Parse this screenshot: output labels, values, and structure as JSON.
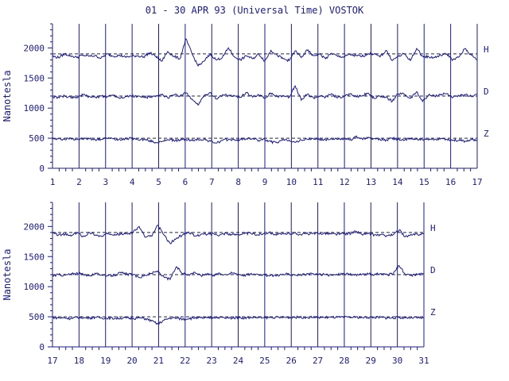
{
  "title": "01 - 30 APR 93 (Universal Time) VOSTOK",
  "ylabel": "Nanotesla",
  "colors": {
    "ink": "#1a1a8c",
    "background": "#ffffff"
  },
  "chart_data": [
    {
      "type": "line",
      "xlim": [
        1,
        17
      ],
      "ylim": [
        0,
        2400
      ],
      "xticks": [
        1,
        2,
        3,
        4,
        5,
        6,
        7,
        8,
        9,
        10,
        11,
        12,
        13,
        14,
        15,
        16,
        17
      ],
      "yticks": [
        0,
        500,
        1000,
        1500,
        2000
      ],
      "grid": "vertical at each day",
      "series": [
        {
          "name": "H",
          "baseline": 1900,
          "values": [
            1860,
            1840,
            1900,
            1870,
            1840,
            1880,
            1860,
            1870,
            1830,
            1900,
            1860,
            1880,
            1850,
            1860,
            1870,
            1850,
            1920,
            1860,
            1780,
            1940,
            1860,
            1820,
            2150,
            1900,
            1700,
            1780,
            1900,
            1800,
            1840,
            2000,
            1850,
            1800,
            1870,
            1820,
            1900,
            1780,
            1960,
            1880,
            1820,
            1790,
            1950,
            1840,
            1960,
            1870,
            1900,
            1820,
            1910,
            1860,
            1850,
            1890,
            1870,
            1860,
            1900,
            1900,
            1850,
            1960,
            1790,
            1860,
            1900,
            1790,
            1990,
            1860,
            1850,
            1840,
            1880,
            1900,
            1800,
            1850,
            1990,
            1880,
            1800
          ]
        },
        {
          "name": "D",
          "baseline": 1200,
          "values": [
            1180,
            1180,
            1200,
            1180,
            1180,
            1220,
            1190,
            1180,
            1200,
            1190,
            1220,
            1170,
            1190,
            1200,
            1190,
            1180,
            1180,
            1190,
            1220,
            1170,
            1220,
            1200,
            1250,
            1150,
            1050,
            1200,
            1260,
            1150,
            1220,
            1210,
            1200,
            1180,
            1260,
            1180,
            1220,
            1170,
            1250,
            1190,
            1210,
            1180,
            1370,
            1130,
            1230,
            1170,
            1200,
            1180,
            1240,
            1170,
            1200,
            1230,
            1190,
            1200,
            1250,
            1160,
            1200,
            1180,
            1110,
            1240,
            1230,
            1160,
            1270,
            1110,
            1220,
            1200,
            1230,
            1240,
            1180,
            1200,
            1220,
            1200,
            1230
          ]
        },
        {
          "name": "Z",
          "baseline": 500,
          "values": [
            480,
            490,
            480,
            500,
            480,
            490,
            490,
            480,
            480,
            500,
            490,
            480,
            490,
            500,
            480,
            480,
            460,
            430,
            440,
            480,
            460,
            470,
            480,
            460,
            480,
            480,
            450,
            420,
            460,
            480,
            470,
            480,
            490,
            490,
            460,
            480,
            440,
            420,
            470,
            470,
            430,
            470,
            480,
            490,
            480,
            470,
            490,
            480,
            490,
            470,
            520,
            490,
            500,
            490,
            480,
            470,
            500,
            480,
            470,
            490,
            490,
            470,
            470,
            480,
            500,
            480,
            470,
            460,
            450,
            480,
            470
          ]
        }
      ]
    },
    {
      "type": "line",
      "xlim": [
        17,
        31
      ],
      "ylim": [
        0,
        2400
      ],
      "xticks": [
        17,
        18,
        19,
        20,
        21,
        22,
        23,
        24,
        25,
        26,
        27,
        28,
        29,
        30,
        31
      ],
      "yticks": [
        0,
        500,
        1000,
        1500,
        2000
      ],
      "grid": "vertical at each day",
      "series": [
        {
          "name": "H",
          "baseline": 1900,
          "values": [
            1890,
            1860,
            1870,
            1840,
            1900,
            1830,
            1900,
            1860,
            1830,
            1890,
            1870,
            1870,
            1880,
            1900,
            2000,
            1820,
            1840,
            2020,
            1860,
            1720,
            1800,
            1860,
            1910,
            1840,
            1870,
            1870,
            1880,
            1860,
            1890,
            1860,
            1870,
            1880,
            1890,
            1860,
            1880,
            1900,
            1870,
            1870,
            1880,
            1890,
            1870,
            1880,
            1880,
            1880,
            1890,
            1880,
            1870,
            1880,
            1880,
            1920,
            1870,
            1880,
            1860,
            1860,
            1850,
            1860,
            1940,
            1830,
            1860,
            1870,
            1880
          ]
        },
        {
          "name": "D",
          "baseline": 1200,
          "values": [
            1180,
            1200,
            1190,
            1210,
            1230,
            1200,
            1190,
            1210,
            1200,
            1180,
            1190,
            1230,
            1210,
            1200,
            1150,
            1190,
            1220,
            1260,
            1160,
            1120,
            1330,
            1220,
            1200,
            1240,
            1180,
            1220,
            1190,
            1220,
            1200,
            1230,
            1210,
            1190,
            1210,
            1210,
            1200,
            1180,
            1190,
            1200,
            1210,
            1200,
            1190,
            1200,
            1210,
            1200,
            1200,
            1190,
            1200,
            1220,
            1200,
            1200,
            1200,
            1210,
            1200,
            1220,
            1200,
            1210,
            1350,
            1200,
            1190,
            1210,
            1210
          ]
        },
        {
          "name": "Z",
          "baseline": 500,
          "values": [
            490,
            480,
            480,
            470,
            490,
            480,
            480,
            490,
            480,
            480,
            470,
            480,
            480,
            470,
            480,
            470,
            430,
            380,
            440,
            480,
            480,
            460,
            470,
            480,
            480,
            480,
            490,
            490,
            480,
            480,
            490,
            480,
            490,
            490,
            480,
            490,
            490,
            490,
            490,
            490,
            490,
            490,
            490,
            490,
            490,
            490,
            490,
            490,
            490,
            490,
            490,
            490,
            490,
            490,
            480,
            480,
            490,
            480,
            490,
            480,
            480
          ]
        }
      ]
    }
  ]
}
